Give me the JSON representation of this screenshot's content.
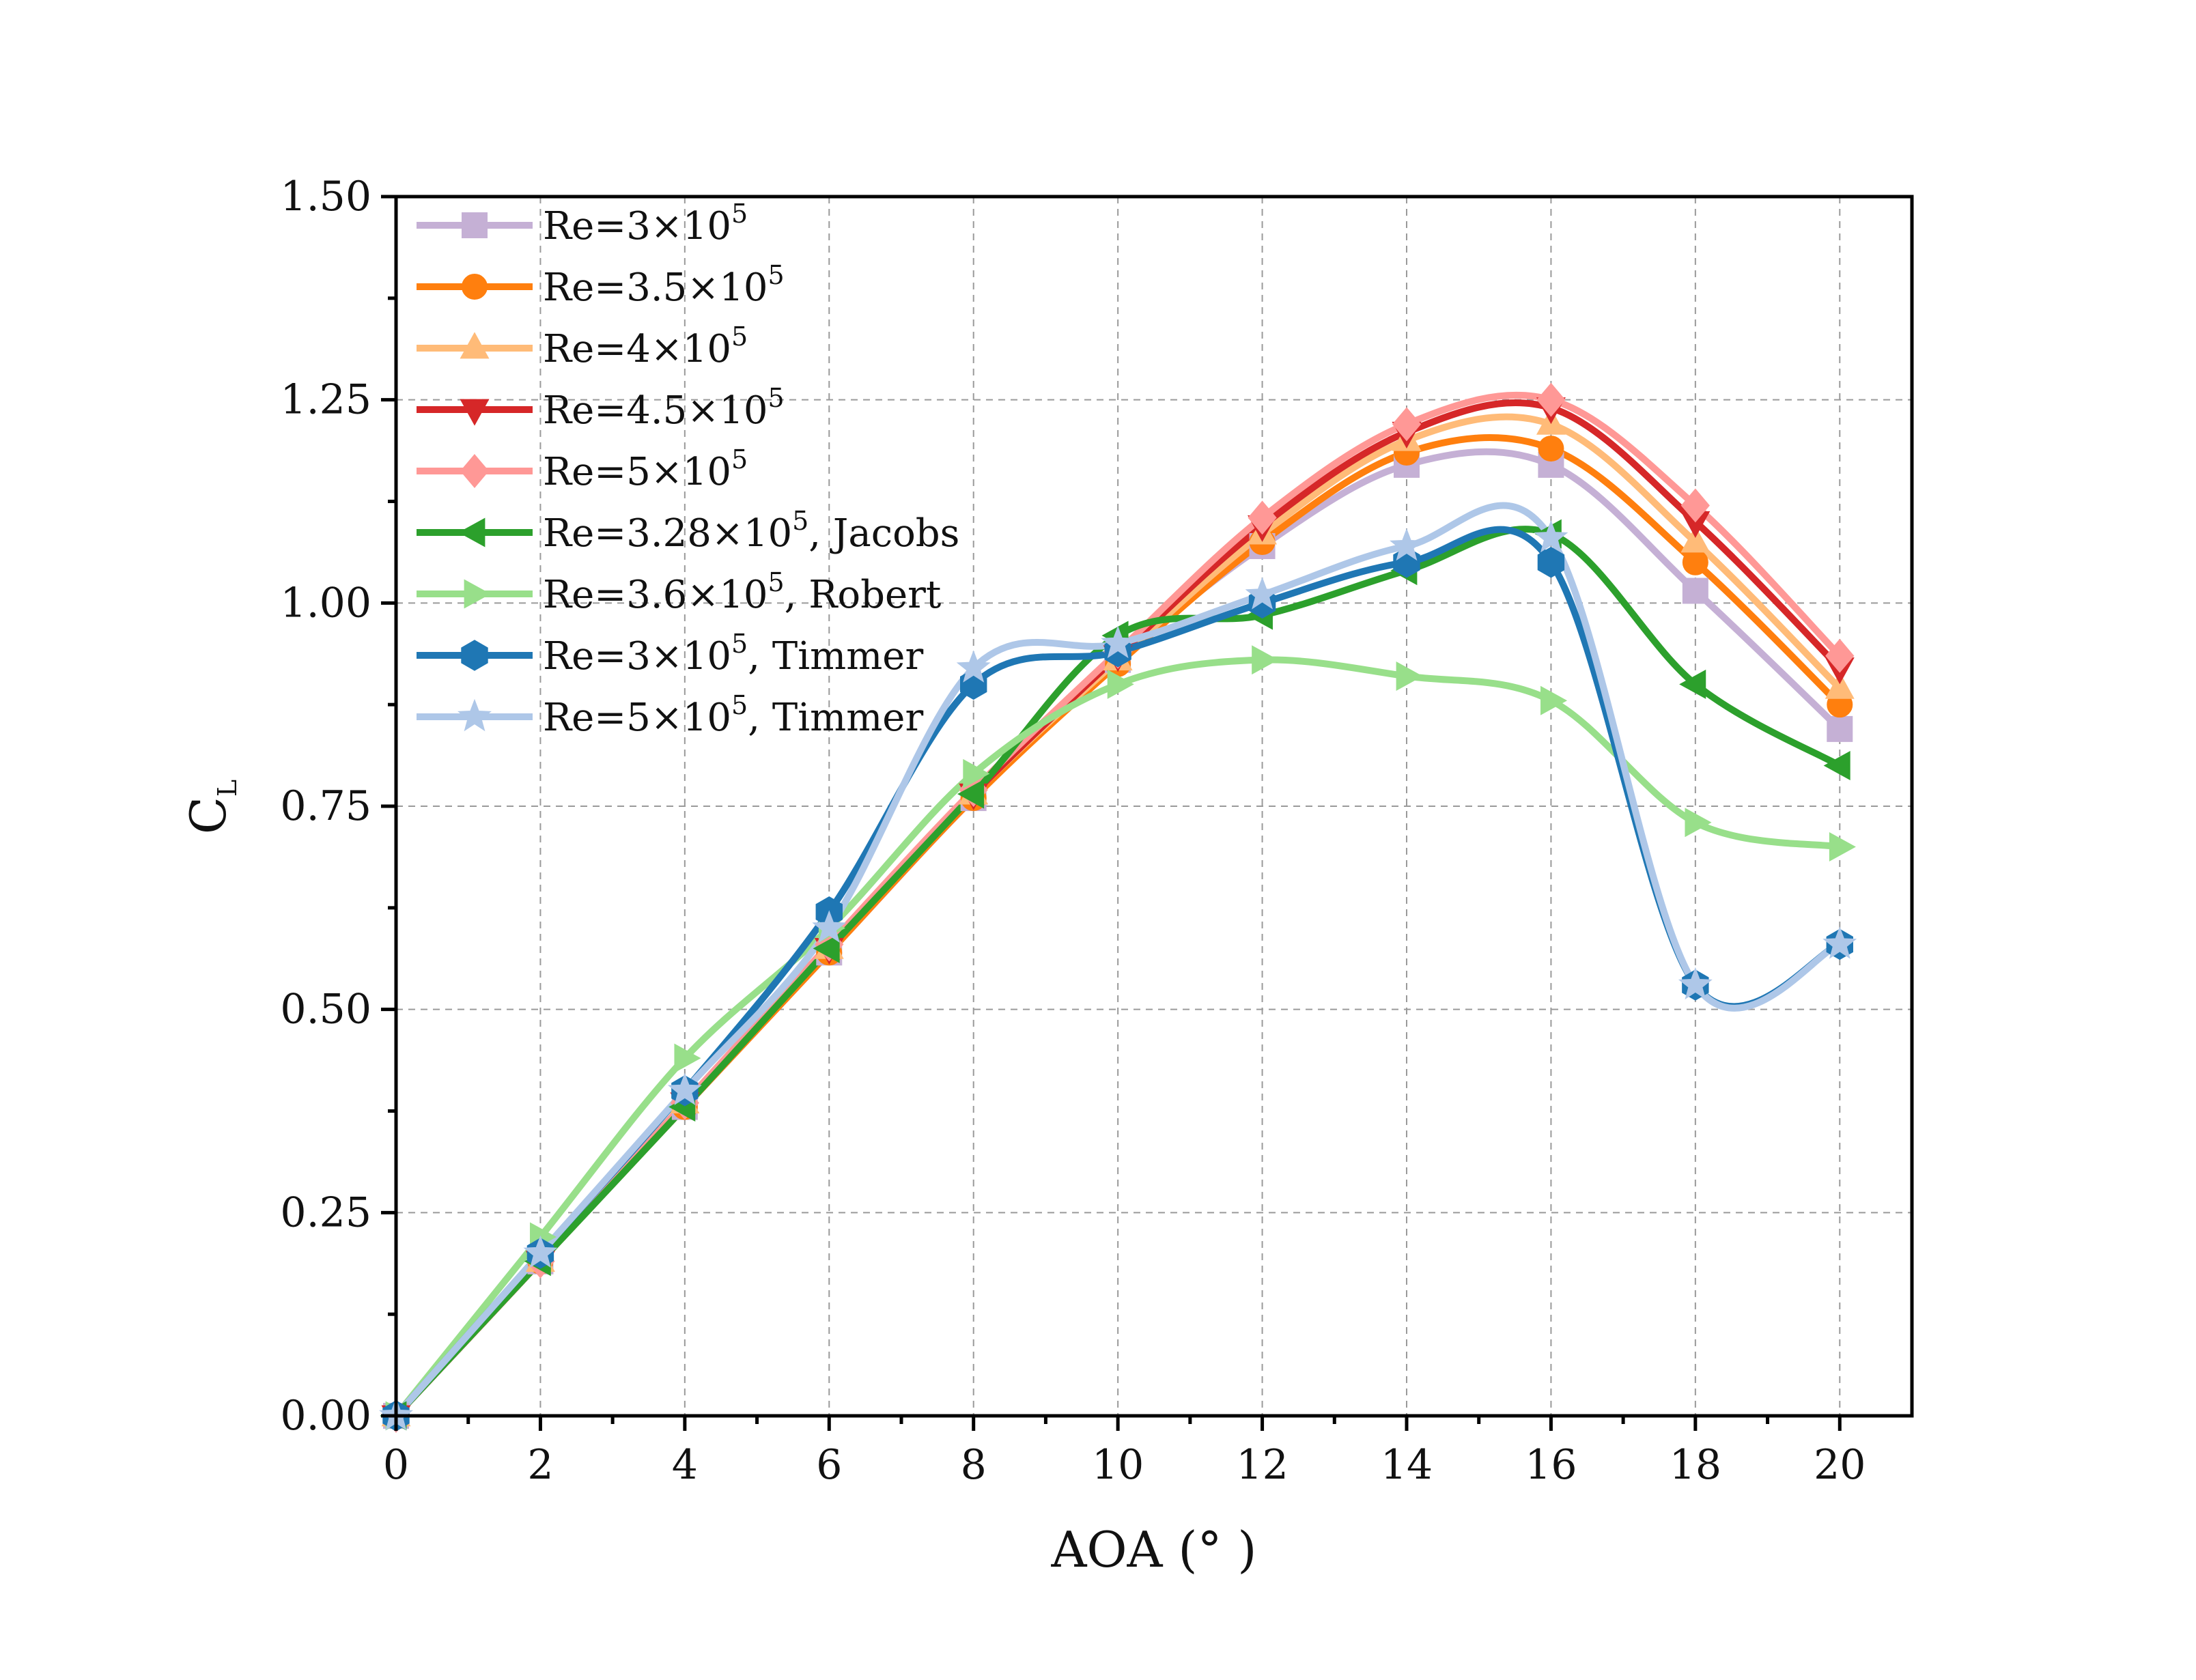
{
  "chart_data": {
    "type": "line",
    "title": "",
    "xlabel": "AOA (° )",
    "ylabel": "C",
    "ylabel_sub": "L",
    "xlim": [
      0,
      21
    ],
    "ylim": [
      0,
      1.5
    ],
    "x_ticks": [
      0,
      2,
      4,
      6,
      8,
      10,
      12,
      14,
      16,
      18,
      20
    ],
    "x_tick_labels": [
      "0",
      "2",
      "4",
      "6",
      "8",
      "10",
      "12",
      "14",
      "16",
      "18",
      "20"
    ],
    "y_ticks": [
      0,
      0.25,
      0.5,
      0.75,
      1.0,
      1.25,
      1.5
    ],
    "y_tick_labels": [
      "0.00",
      "0.25",
      "0.50",
      "0.75",
      "1.00",
      "1.25",
      "1.50"
    ],
    "grid": true,
    "legend_position": "top-left",
    "series": [
      {
        "name": "Re=3×10",
        "sup": "5",
        "suffix": "",
        "color": "#c5b0d5",
        "marker": "square",
        "x": [
          0,
          2,
          4,
          6,
          8,
          10,
          12,
          14,
          16,
          18,
          20
        ],
        "y": [
          0,
          0.19,
          0.38,
          0.57,
          0.76,
          0.93,
          1.07,
          1.17,
          1.17,
          1.015,
          0.845
        ]
      },
      {
        "name": "Re=3.5×10",
        "sup": "5",
        "suffix": "",
        "color": "#ff7f0e",
        "marker": "circle",
        "x": [
          0,
          2,
          4,
          6,
          8,
          10,
          12,
          14,
          16,
          18,
          20
        ],
        "y": [
          0,
          0.19,
          0.38,
          0.57,
          0.76,
          0.925,
          1.075,
          1.185,
          1.19,
          1.05,
          0.875
        ]
      },
      {
        "name": "Re=4×10",
        "sup": "5",
        "suffix": "",
        "color": "#ffbb78",
        "marker": "triangle-up",
        "x": [
          0,
          2,
          4,
          6,
          8,
          10,
          12,
          14,
          16,
          18,
          20
        ],
        "y": [
          0,
          0.19,
          0.385,
          0.575,
          0.765,
          0.93,
          1.085,
          1.2,
          1.22,
          1.075,
          0.895
        ]
      },
      {
        "name": "Re=4.5×10",
        "sup": "5",
        "suffix": "",
        "color": "#d62728",
        "marker": "triangle-down",
        "x": [
          0,
          2,
          4,
          6,
          8,
          10,
          12,
          14,
          16,
          18,
          20
        ],
        "y": [
          0,
          0.19,
          0.385,
          0.575,
          0.765,
          0.935,
          1.095,
          1.21,
          1.24,
          1.1,
          0.92
        ]
      },
      {
        "name": "Re=5×10",
        "sup": "5",
        "suffix": "",
        "color": "#ff9896",
        "marker": "diamond",
        "x": [
          0,
          2,
          4,
          6,
          8,
          10,
          12,
          14,
          16,
          18,
          20
        ],
        "y": [
          0,
          0.19,
          0.385,
          0.58,
          0.77,
          0.94,
          1.105,
          1.22,
          1.25,
          1.12,
          0.935
        ]
      },
      {
        "name": "Re=3.28×10",
        "sup": "5",
        "suffix": ", Jacobs",
        "color": "#2ca02c",
        "marker": "triangle-left",
        "x": [
          0,
          2,
          4,
          6,
          8,
          10,
          12,
          14,
          16,
          18,
          20
        ],
        "y": [
          0,
          0.19,
          0.38,
          0.575,
          0.765,
          0.96,
          0.985,
          1.04,
          1.085,
          0.9,
          0.8
        ]
      },
      {
        "name": "Re=3.6×10",
        "sup": "5",
        "suffix": ", Robert",
        "color": "#98df8a",
        "marker": "triangle-right",
        "x": [
          0,
          2,
          4,
          6,
          8,
          10,
          12,
          14,
          16,
          18,
          20
        ],
        "y": [
          0,
          0.22,
          0.44,
          0.6,
          0.79,
          0.9,
          0.93,
          0.91,
          0.88,
          0.73,
          0.7
        ]
      },
      {
        "name": "Re=3×10",
        "sup": "5",
        "suffix": ", Timmer",
        "color": "#1f77b4",
        "marker": "hexagon",
        "x": [
          0,
          2,
          4,
          6,
          8,
          10,
          12,
          14,
          16,
          18,
          20
        ],
        "y": [
          0,
          0.2,
          0.4,
          0.62,
          0.9,
          0.94,
          1.0,
          1.05,
          1.05,
          0.53,
          0.58
        ]
      },
      {
        "name": "Re=5×10",
        "sup": "5",
        "suffix": ", Timmer",
        "color": "#aec7e8",
        "marker": "star",
        "x": [
          0,
          2,
          4,
          6,
          8,
          10,
          12,
          14,
          16,
          18,
          20
        ],
        "y": [
          0,
          0.2,
          0.4,
          0.6,
          0.92,
          0.95,
          1.01,
          1.07,
          1.08,
          0.53,
          0.58
        ]
      }
    ]
  }
}
